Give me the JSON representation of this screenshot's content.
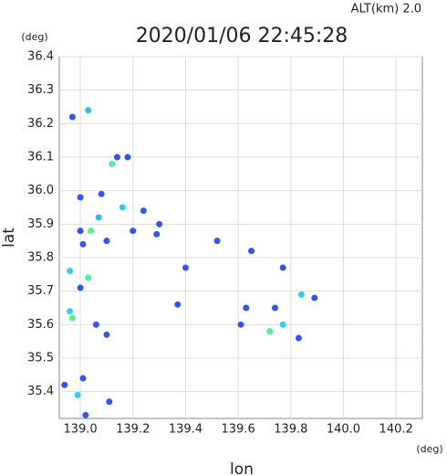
{
  "chart_data": {
    "type": "scatter",
    "title": "2020/01/06 22:45:28",
    "subtitle": "ALT(km) 2.0",
    "x_label": "lon",
    "y_label": "lat",
    "x_unit": "(deg)",
    "y_unit": "(deg)",
    "xlim": [
      138.92,
      140.3
    ],
    "ylim": [
      35.32,
      36.4
    ],
    "xticks": [
      {
        "value": 139,
        "label": "139.0"
      },
      139.2,
      139.4,
      139.6,
      139.8,
      {
        "value": 140,
        "label": "140.0"
      },
      140.2
    ],
    "yticks": [
      35.4,
      35.5,
      35.6,
      35.7,
      35.8,
      35.9,
      {
        "value": 36,
        "label": "36.0"
      },
      36.1,
      36.2,
      36.3,
      36.4
    ],
    "grid": true,
    "x": [
      139.03,
      138.97,
      139.14,
      139.18,
      139.12,
      139.0,
      139.08,
      139.16,
      139.24,
      139.07,
      139.0,
      139.04,
      139.01,
      139.1,
      139.2,
      138.96,
      139.03,
      139.0,
      138.96,
      138.97,
      139.06,
      139.1,
      139.01,
      138.94,
      138.99,
      139.02,
      139.11,
      139.4,
      139.52,
      139.65,
      139.77,
      139.84,
      139.89,
      139.63,
      139.74,
      139.77,
      139.72,
      139.61,
      139.83,
      139.37,
      139.29,
      139.3
    ],
    "y": [
      36.24,
      36.22,
      36.1,
      36.1,
      36.08,
      35.98,
      35.99,
      35.95,
      35.94,
      35.92,
      35.88,
      35.88,
      35.84,
      35.85,
      35.88,
      35.76,
      35.74,
      35.71,
      35.64,
      35.62,
      35.6,
      35.57,
      35.44,
      35.42,
      35.39,
      35.33,
      35.37,
      35.77,
      35.85,
      35.82,
      35.77,
      35.69,
      35.68,
      35.65,
      35.65,
      35.6,
      35.58,
      35.6,
      35.56,
      35.66,
      35.87,
      35.9
    ],
    "colors": [
      "#33bbee",
      "#3355ee",
      "#3355ee",
      "#3355ee",
      "#55ee99",
      "#3355ee",
      "#3355ee",
      "#33ccee",
      "#3355ee",
      "#33bbee",
      "#3355ee",
      "#55ee99",
      "#3355ee",
      "#3355ee",
      "#3355ee",
      "#33ccee",
      "#55ee99",
      "#3355ee",
      "#33ccee",
      "#55ee99",
      "#3355ee",
      "#3355ee",
      "#3355ee",
      "#3355ee",
      "#33ccee",
      "#3355ee",
      "#3355ee",
      "#3355ee",
      "#3355ee",
      "#3355ee",
      "#3355ee",
      "#33ccee",
      "#3355ee",
      "#3355ee",
      "#3355ee",
      "#33ccee",
      "#55ee99",
      "#3355ee",
      "#3355ee",
      "#3355ee",
      "#3355ee",
      "#3355ee"
    ]
  }
}
